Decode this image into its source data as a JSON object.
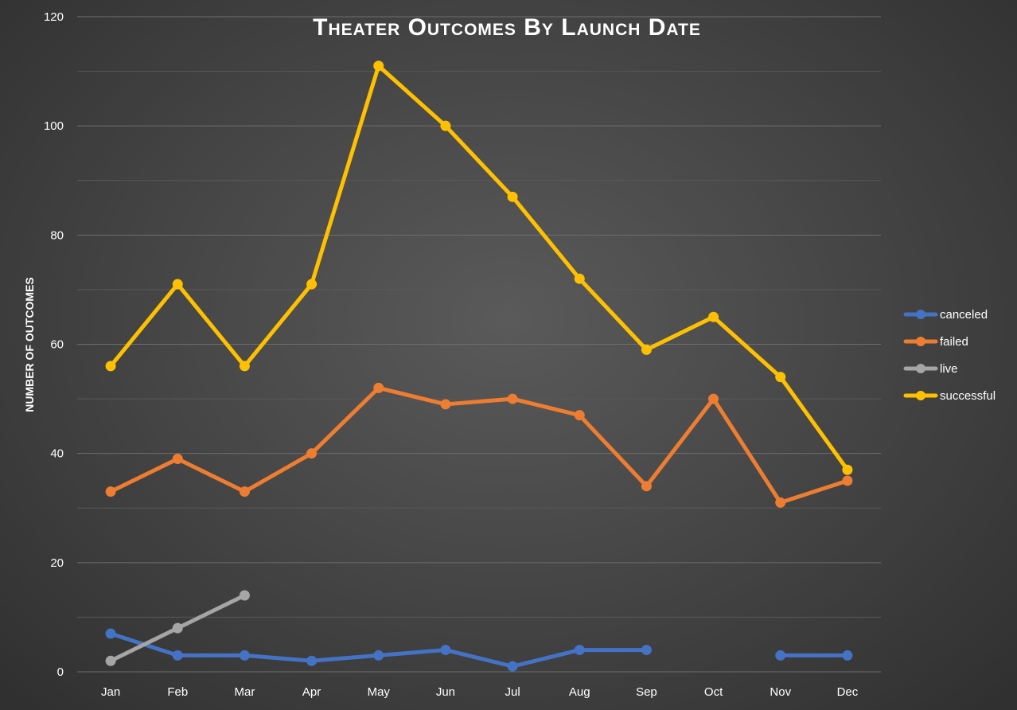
{
  "chart_data": {
    "type": "line",
    "title": "Theater Outcomes By Launch Date",
    "xlabel": "",
    "ylabel": "NUMBER OF OUTCOMES",
    "ylim": [
      0,
      120
    ],
    "yticks": [
      0,
      20,
      40,
      60,
      80,
      100,
      120
    ],
    "grid": true,
    "legend_position": "right",
    "categories": [
      "Jan",
      "Feb",
      "Mar",
      "Apr",
      "May",
      "Jun",
      "Jul",
      "Aug",
      "Sep",
      "Oct",
      "Nov",
      "Dec"
    ],
    "series": [
      {
        "name": "canceled",
        "color": "#4472c4",
        "values": [
          7,
          3,
          3,
          2,
          3,
          4,
          1,
          4,
          4,
          null,
          3,
          3
        ]
      },
      {
        "name": "failed",
        "color": "#ed7d31",
        "values": [
          33,
          39,
          33,
          40,
          52,
          49,
          50,
          47,
          34,
          50,
          31,
          35
        ]
      },
      {
        "name": "live",
        "color": "#a5a5a5",
        "values": [
          2,
          8,
          14,
          null,
          null,
          null,
          null,
          null,
          null,
          null,
          null,
          null
        ]
      },
      {
        "name": "successful",
        "color": "#ffc000",
        "values": [
          56,
          71,
          56,
          71,
          111,
          100,
          87,
          72,
          59,
          65,
          54,
          37
        ]
      }
    ]
  }
}
